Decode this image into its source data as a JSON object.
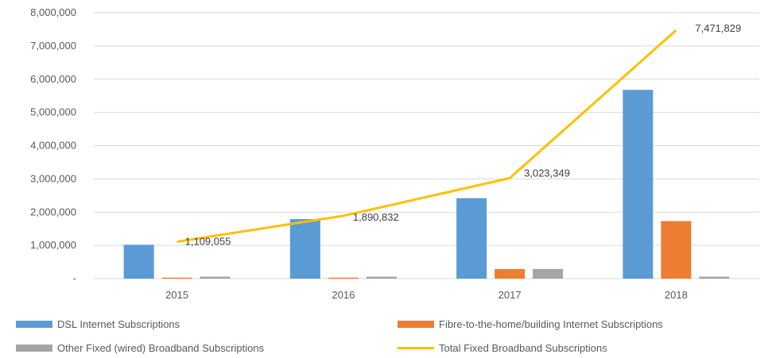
{
  "chart_data": {
    "type": "bar",
    "categories": [
      "2015",
      "2016",
      "2017",
      "2018"
    ],
    "ylim": [
      0,
      8000000
    ],
    "y_ticks": [
      "-",
      "1,000,000",
      "2,000,000",
      "3,000,000",
      "4,000,000",
      "5,000,000",
      "6,000,000",
      "7,000,000",
      "8,000,000"
    ],
    "grid": true,
    "legend_position": "bottom",
    "series": [
      {
        "name": "DSL Internet Subscriptions",
        "kind": "bar",
        "color": "#5b9bd5",
        "values": [
          1020000,
          1790000,
          2420000,
          5680000
        ]
      },
      {
        "name": "Fibre-to-the-home/building Internet Subscriptions",
        "kind": "bar",
        "color": "#ed7d31",
        "values": [
          30000,
          30000,
          290000,
          1730000
        ]
      },
      {
        "name": "Other Fixed (wired) Broadband Subscriptions",
        "kind": "bar",
        "color": "#a5a5a5",
        "values": [
          60000,
          60000,
          290000,
          60000
        ]
      },
      {
        "name": "Total Fixed Broadband Subscriptions",
        "kind": "line",
        "color": "#ffc000",
        "values": [
          1109055,
          1890832,
          3023349,
          7471829
        ],
        "data_labels": [
          "1,109,055",
          "1,890,832",
          "3,023,349",
          "7,471,829"
        ]
      }
    ]
  }
}
